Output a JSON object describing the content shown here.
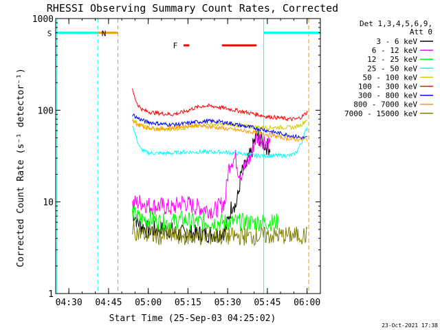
{
  "chart_data": {
    "type": "line",
    "title": "RHESSI Observing Summary Count Rates, Corrected",
    "xlabel": "Start Time (25-Sep-03 04:25:02)",
    "ylabel": "Corrected Count Rate (s⁻¹ detector⁻¹)",
    "yscale": "log",
    "ylim": [
      1,
      1000
    ],
    "xlim_minutes": [
      0,
      100
    ],
    "x_ticks": [
      {
        "label": "04:30",
        "minute": 4.97
      },
      {
        "label": "04:45",
        "minute": 19.97
      },
      {
        "label": "05:00",
        "minute": 34.97
      },
      {
        "label": "05:15",
        "minute": 49.97
      },
      {
        "label": "05:30",
        "minute": 64.97
      },
      {
        "label": "05:45",
        "minute": 79.97
      },
      {
        "label": "06:00",
        "minute": 94.97
      }
    ],
    "y_ticks": [
      {
        "label": "1",
        "value": 1
      },
      {
        "label": "10",
        "value": 10
      },
      {
        "label": "100",
        "value": 100
      },
      {
        "label": "1000",
        "value": 1000
      }
    ],
    "legend_header": [
      "Det 1,3,4,5,6,9,",
      "Att 0"
    ],
    "legend_position": "right",
    "series": [
      {
        "name": "3 - 6 keV",
        "color": "#000000",
        "points": [
          [
            29.0,
            8.0
          ],
          [
            31,
            6
          ],
          [
            34,
            5
          ],
          [
            37,
            5
          ],
          [
            40,
            5
          ],
          [
            43,
            5
          ],
          [
            46,
            4.5
          ],
          [
            49,
            4.5
          ],
          [
            52,
            4.5
          ],
          [
            55,
            4.5
          ],
          [
            58,
            4.5
          ],
          [
            61,
            4.5
          ],
          [
            64,
            4.8
          ],
          [
            65,
            6
          ],
          [
            66,
            8
          ],
          [
            67,
            10
          ],
          [
            68,
            9
          ],
          [
            69,
            12
          ],
          [
            70,
            20
          ],
          [
            72,
            25
          ],
          [
            74,
            35
          ],
          [
            75,
            45
          ],
          [
            76,
            55
          ],
          [
            77,
            50
          ],
          [
            78,
            45
          ],
          [
            80,
            40
          ],
          [
            81,
            40
          ]
        ]
      },
      {
        "name": "6 - 12 keV",
        "color": "#ff00ff",
        "points": [
          [
            29.0,
            9.5
          ],
          [
            32,
            10
          ],
          [
            36,
            9
          ],
          [
            40,
            9
          ],
          [
            44,
            8.5
          ],
          [
            48,
            10
          ],
          [
            52,
            9
          ],
          [
            56,
            8.5
          ],
          [
            60,
            8
          ],
          [
            62,
            9
          ],
          [
            64,
            10
          ],
          [
            65,
            20
          ],
          [
            66,
            28
          ],
          [
            68,
            30
          ],
          [
            69,
            22
          ],
          [
            70,
            20
          ],
          [
            72,
            25
          ],
          [
            74,
            33
          ],
          [
            75,
            45
          ],
          [
            76,
            50
          ],
          [
            78,
            48
          ],
          [
            80,
            45
          ],
          [
            81,
            45
          ]
        ]
      },
      {
        "name": "12 - 25 keV",
        "color": "#00ff00",
        "points": [
          [
            29.0,
            7.5
          ],
          [
            32,
            6.5
          ],
          [
            36,
            6.5
          ],
          [
            40,
            6
          ],
          [
            44,
            6
          ],
          [
            48,
            6.5
          ],
          [
            52,
            6
          ],
          [
            56,
            6
          ],
          [
            60,
            6
          ],
          [
            64,
            6
          ],
          [
            68,
            6
          ],
          [
            72,
            6
          ],
          [
            76,
            6
          ],
          [
            80,
            6
          ],
          [
            84,
            6
          ]
        ]
      },
      {
        "name": "25 - 50 keV",
        "color": "#00ffff",
        "points": [
          [
            29.0,
            70
          ],
          [
            30,
            55
          ],
          [
            31,
            45
          ],
          [
            32,
            38
          ],
          [
            34,
            35
          ],
          [
            36,
            34
          ],
          [
            40,
            34
          ],
          [
            44,
            34
          ],
          [
            48,
            35
          ],
          [
            52,
            35
          ],
          [
            56,
            35
          ],
          [
            60,
            35
          ],
          [
            64,
            35
          ],
          [
            68,
            34
          ],
          [
            72,
            33
          ],
          [
            76,
            32
          ],
          [
            80,
            32
          ],
          [
            84,
            32
          ],
          [
            88,
            32
          ],
          [
            90,
            33
          ],
          [
            91,
            35
          ],
          [
            92,
            40
          ],
          [
            93,
            45
          ],
          [
            94,
            55
          ],
          [
            95,
            65
          ]
        ]
      },
      {
        "name": "50 - 100 keV",
        "color": "#cccc00",
        "points": [
          [
            29.0,
            80
          ],
          [
            31,
            72
          ],
          [
            34,
            65
          ],
          [
            38,
            62
          ],
          [
            42,
            62
          ],
          [
            46,
            63
          ],
          [
            50,
            65
          ],
          [
            54,
            68
          ],
          [
            58,
            70
          ],
          [
            62,
            70
          ],
          [
            66,
            70
          ],
          [
            70,
            68
          ],
          [
            74,
            66
          ],
          [
            78,
            65
          ],
          [
            82,
            65
          ],
          [
            86,
            65
          ],
          [
            90,
            65
          ],
          [
            93,
            70
          ],
          [
            95,
            80
          ]
        ]
      },
      {
        "name": "100 - 300 keV",
        "color": "#ff0000",
        "points": [
          [
            29.0,
            165
          ],
          [
            30,
            135
          ],
          [
            31,
            115
          ],
          [
            33,
            100
          ],
          [
            36,
            95
          ],
          [
            40,
            92
          ],
          [
            44,
            90
          ],
          [
            48,
            95
          ],
          [
            52,
            105
          ],
          [
            56,
            112
          ],
          [
            60,
            110
          ],
          [
            64,
            105
          ],
          [
            68,
            100
          ],
          [
            72,
            95
          ],
          [
            76,
            90
          ],
          [
            80,
            85
          ],
          [
            84,
            83
          ],
          [
            88,
            80
          ],
          [
            91,
            80
          ],
          [
            93,
            85
          ],
          [
            95,
            95
          ]
        ]
      },
      {
        "name": "300 - 800 keV",
        "color": "#0000ff",
        "points": [
          [
            29.0,
            90
          ],
          [
            31,
            82
          ],
          [
            34,
            75
          ],
          [
            38,
            72
          ],
          [
            42,
            70
          ],
          [
            46,
            70
          ],
          [
            50,
            72
          ],
          [
            54,
            75
          ],
          [
            58,
            76
          ],
          [
            62,
            75
          ],
          [
            66,
            72
          ],
          [
            70,
            68
          ],
          [
            74,
            65
          ],
          [
            78,
            62
          ],
          [
            82,
            58
          ],
          [
            86,
            55
          ],
          [
            90,
            52
          ],
          [
            93,
            50
          ],
          [
            95,
            50
          ]
        ]
      },
      {
        "name": "800 - 7000 keV",
        "color": "#ff9900",
        "points": [
          [
            29.0,
            75
          ],
          [
            31,
            70
          ],
          [
            34,
            65
          ],
          [
            38,
            63
          ],
          [
            42,
            63
          ],
          [
            46,
            65
          ],
          [
            50,
            68
          ],
          [
            54,
            68
          ],
          [
            58,
            66
          ],
          [
            62,
            64
          ],
          [
            66,
            62
          ],
          [
            70,
            60
          ],
          [
            74,
            58
          ],
          [
            78,
            56
          ],
          [
            82,
            53
          ],
          [
            86,
            50
          ],
          [
            90,
            48
          ],
          [
            93,
            48
          ],
          [
            95,
            48
          ]
        ]
      },
      {
        "name": "7000 - 15000 keV",
        "color": "#808000",
        "points": [
          [
            29.0,
            5.0
          ],
          [
            32,
            4.5
          ],
          [
            36,
            4.3
          ],
          [
            40,
            4.2
          ],
          [
            44,
            4.3
          ],
          [
            48,
            4.2
          ],
          [
            52,
            4.2
          ],
          [
            56,
            4.2
          ],
          [
            60,
            4.2
          ],
          [
            64,
            4.2
          ],
          [
            68,
            4.2
          ],
          [
            72,
            4.2
          ],
          [
            76,
            4.2
          ],
          [
            80,
            4.3
          ],
          [
            84,
            4.3
          ],
          [
            88,
            4.3
          ],
          [
            92,
            4.3
          ],
          [
            95,
            4.3
          ]
        ]
      }
    ],
    "annotations": [
      {
        "label": "S",
        "color": "#ff9900",
        "type": "saa_bar",
        "start": 0,
        "end": 23.5,
        "value": 700
      },
      {
        "label": "N",
        "color": "#00ffff",
        "type": "night_bar",
        "start": 0,
        "end": 15.9,
        "value": 700
      },
      {
        "label": "",
        "color": "#00ffff",
        "type": "night_bar",
        "start": 78.6,
        "end": 100,
        "value": 700
      },
      {
        "label": "F",
        "color": "#ff0000",
        "type": "flare_bar",
        "start": 48.3,
        "end": 50.5,
        "value": 510
      },
      {
        "label": "",
        "color": "#ff0000",
        "type": "flare_bar",
        "start": 62.8,
        "end": 75.9,
        "value": 510
      }
    ],
    "vlines": [
      {
        "minute": 0.5,
        "color": "#00ffff",
        "style": "solid"
      },
      {
        "minute": 15.9,
        "color": "#00ffff",
        "style": "dashed"
      },
      {
        "minute": 23.5,
        "color": "#ff9900",
        "style": "dashed"
      },
      {
        "minute": 78.6,
        "color": "#00ffff",
        "style": "solid"
      },
      {
        "minute": 95.6,
        "color": "#00ffff",
        "style": "dashed"
      },
      {
        "minute": 95.6,
        "color": "#ff9900",
        "style": "dashed"
      }
    ]
  },
  "footer": {
    "timestamp": "23-Oct-2021 17:38"
  }
}
